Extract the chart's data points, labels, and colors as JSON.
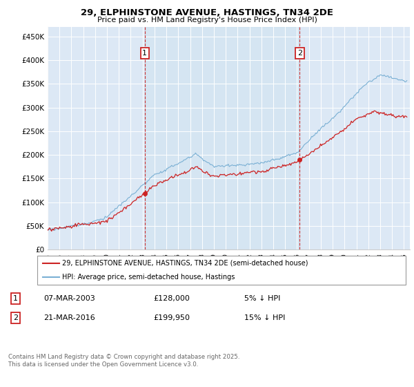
{
  "title": "29, ELPHINSTONE AVENUE, HASTINGS, TN34 2DE",
  "subtitle": "Price paid vs. HM Land Registry's House Price Index (HPI)",
  "ylabel_ticks": [
    "£0",
    "£50K",
    "£100K",
    "£150K",
    "£200K",
    "£250K",
    "£300K",
    "£350K",
    "£400K",
    "£450K"
  ],
  "ytick_values": [
    0,
    50000,
    100000,
    150000,
    200000,
    250000,
    300000,
    350000,
    400000,
    450000
  ],
  "ylim": [
    0,
    470000
  ],
  "xlim_start": 1995.0,
  "xlim_end": 2025.5,
  "hpi_color": "#7ab0d4",
  "price_color": "#cc2222",
  "marker1_date": 2003.18,
  "marker2_date": 2016.22,
  "marker1_price": 128000,
  "marker2_price": 199950,
  "legend_label_price": "29, ELPHINSTONE AVENUE, HASTINGS, TN34 2DE (semi-detached house)",
  "legend_label_hpi": "HPI: Average price, semi-detached house, Hastings",
  "table_row1": [
    "1",
    "07-MAR-2003",
    "£128,000",
    "5% ↓ HPI"
  ],
  "table_row2": [
    "2",
    "21-MAR-2016",
    "£199,950",
    "15% ↓ HPI"
  ],
  "footer": "Contains HM Land Registry data © Crown copyright and database right 2025.\nThis data is licensed under the Open Government Licence v3.0.",
  "bg_color": "#dce8f5",
  "fig_bg": "#ffffff"
}
